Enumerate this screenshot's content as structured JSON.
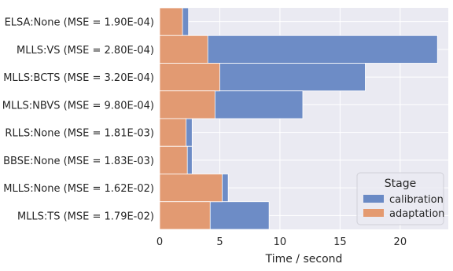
{
  "chart_data": {
    "type": "bar",
    "orientation": "horizontal",
    "stacking": "overlay",
    "categories": [
      "ELSA:None (MSE = 1.90E-04)",
      "MLLS:VS (MSE = 2.80E-04)",
      "MLLS:BCTS (MSE = 3.20E-04)",
      "MLLS:NBVS (MSE = 9.80E-04)",
      "RLLS:None (MSE = 1.81E-03)",
      "BBSE:None (MSE = 1.83E-03)",
      "MLLS:None (MSE = 1.62E-02)",
      "MLLS:TS (MSE = 1.79E-02)"
    ],
    "series": [
      {
        "name": "calibration",
        "color": "#6a8ac5",
        "values": [
          2.4,
          23.1,
          17.1,
          11.9,
          2.7,
          2.7,
          5.7,
          9.1
        ]
      },
      {
        "name": "adaptation",
        "color": "#e49a70",
        "values": [
          1.9,
          4.0,
          5.0,
          4.6,
          2.2,
          2.3,
          5.2,
          4.2
        ]
      }
    ],
    "xlabel": "Time / second",
    "ylabel": "",
    "xlim": [
      0,
      24
    ],
    "xticks": [
      0,
      5,
      10,
      15,
      20
    ],
    "grid": true,
    "background": "#eaeaf2",
    "legend": {
      "title": "Stage",
      "placement": "lower-right"
    }
  }
}
